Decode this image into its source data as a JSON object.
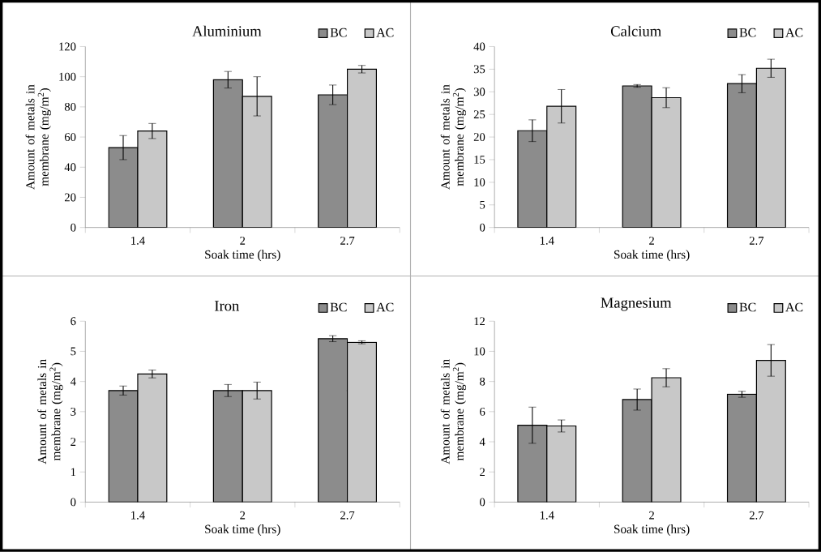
{
  "chart_data": [
    {
      "type": "bar",
      "title": "Aluminium",
      "xlabel": "Soak time (hrs)",
      "ylabel": "Amount of metals  in membrane (mg/m$^{2}$)",
      "categories": [
        "1.4",
        "2",
        "2.7"
      ],
      "legend": "top right",
      "ylim": [
        0,
        120
      ],
      "yticks": [
        0,
        20,
        40,
        60,
        80,
        100,
        120
      ],
      "series": [
        {
          "name": "BC",
          "color": "#8c8c8c",
          "values": [
            53,
            98,
            88
          ],
          "errors": [
            8,
            5.5,
            6.5
          ]
        },
        {
          "name": "AC",
          "color": "#c8c8c8",
          "values": [
            64,
            87,
            105
          ],
          "errors": [
            5,
            13,
            2.5
          ]
        }
      ]
    },
    {
      "type": "bar",
      "title": "Calcium",
      "xlabel": "Soak time (hrs)",
      "ylabel": "Amount of metals  in membrane (mg/m$^{2}$)",
      "categories": [
        "1.4",
        "2",
        "2.7"
      ],
      "legend": "top right",
      "ylim": [
        0,
        40
      ],
      "yticks": [
        0,
        5,
        10,
        15,
        20,
        25,
        30,
        35,
        40
      ],
      "series": [
        {
          "name": "BC",
          "color": "#8c8c8c",
          "values": [
            21.4,
            31.3,
            31.8
          ],
          "errors": [
            2.4,
            0.3,
            2
          ]
        },
        {
          "name": "AC",
          "color": "#c8c8c8",
          "values": [
            26.8,
            28.7,
            35.2
          ],
          "errors": [
            3.7,
            2.2,
            2
          ]
        }
      ]
    },
    {
      "type": "bar",
      "title": "Iron",
      "xlabel": "Soak time (hrs)",
      "ylabel": "Amount of metals  in membrane (mg/m$^{2}$)",
      "categories": [
        "1.4",
        "2",
        "2.7"
      ],
      "legend": "top right",
      "ylim": [
        0,
        6
      ],
      "yticks": [
        0,
        1,
        2,
        3,
        4,
        5,
        6
      ],
      "series": [
        {
          "name": "BC",
          "color": "#8c8c8c",
          "values": [
            3.7,
            3.7,
            5.42
          ],
          "errors": [
            0.15,
            0.2,
            0.1
          ]
        },
        {
          "name": "AC",
          "color": "#c8c8c8",
          "values": [
            4.25,
            3.7,
            5.3
          ],
          "errors": [
            0.13,
            0.28,
            0.05
          ]
        }
      ]
    },
    {
      "type": "bar",
      "title": "Magnesium",
      "xlabel": "Soak time (hrs)",
      "ylabel": "Amount of metals  in membrane (mg/m$^{2}$)",
      "categories": [
        "1.4",
        "2",
        "2.7"
      ],
      "legend": "top right",
      "ylim": [
        0,
        12
      ],
      "yticks": [
        0,
        2,
        4,
        6,
        8,
        10,
        12
      ],
      "series": [
        {
          "name": "BC",
          "color": "#8c8c8c",
          "values": [
            5.1,
            6.8,
            7.15
          ],
          "errors": [
            1.2,
            0.7,
            0.2
          ]
        },
        {
          "name": "AC",
          "color": "#c8c8c8",
          "values": [
            5.05,
            8.25,
            9.4
          ],
          "errors": [
            0.4,
            0.6,
            1.05
          ]
        }
      ]
    }
  ]
}
